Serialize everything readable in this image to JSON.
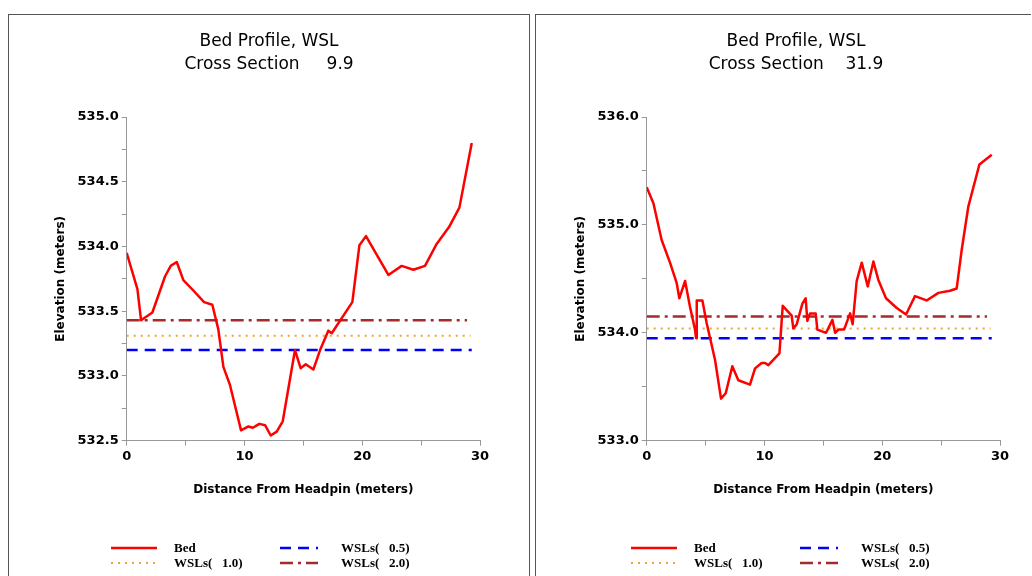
{
  "chart_data": [
    {
      "type": "line",
      "title": "Bed Profile, WSL",
      "subtitle": "Cross Section     9.9",
      "xlabel": "Distance From Headpin (meters)",
      "ylabel": "Elevation (meters)",
      "legend": "bottom",
      "marker": "none",
      "xlim": [
        0,
        30
      ],
      "xticks": [
        0,
        {
          "value": 5,
          "label": null
        },
        10,
        {
          "value": 15,
          "label": null
        },
        20,
        {
          "value": 25,
          "label": null
        },
        30
      ],
      "ylim": [
        532.5,
        535
      ],
      "yticks": [
        532.5,
        {
          "value": 532.75,
          "label": null
        },
        {
          "value": 533,
          "label": "533.0"
        },
        {
          "value": 533.25,
          "label": null
        },
        533.5,
        {
          "value": 533.75,
          "label": null
        },
        {
          "value": 534,
          "label": "534.0"
        },
        {
          "value": 534.25,
          "label": null
        },
        534.5,
        {
          "value": 534.75,
          "label": null
        },
        {
          "value": 535,
          "label": "535.0"
        }
      ],
      "series": [
        {
          "name": "Bed",
          "color": "#ff0000",
          "line_style": "solid",
          "x": [
            0,
            0.91,
            1.22,
            2.18,
            3.26,
            3.74,
            4.25,
            4.81,
            5.66,
            6.57,
            7.27,
            7.78,
            8.21,
            8.77,
            9.71,
            10.33,
            10.7,
            11.27,
            11.75,
            12.23,
            12.74,
            13.25,
            14.29,
            14.77,
            15.2,
            15.85,
            16.42,
            17.12,
            17.41,
            19.16,
            19.76,
            20.32,
            22.22,
            23.35,
            24.34,
            25.33,
            26.32,
            27.37,
            28.25,
            29.3
          ],
          "values": [
            533.95,
            533.67,
            533.43,
            533.49,
            533.77,
            533.85,
            533.88,
            533.74,
            533.66,
            533.57,
            533.55,
            533.36,
            533.07,
            532.93,
            532.58,
            532.61,
            532.6,
            532.63,
            532.62,
            532.54,
            532.57,
            532.65,
            533.2,
            533.06,
            533.09,
            533.05,
            533.2,
            533.35,
            533.33,
            533.57,
            534.01,
            534.08,
            533.78,
            533.85,
            533.82,
            533.85,
            534.02,
            534.15,
            534.3,
            534.8
          ]
        },
        {
          "name": "WSLs(   0.5)",
          "color": "#0000ff",
          "line_style": "dashed",
          "x": [
            0,
            29.3
          ],
          "values": [
            533.2,
            533.2
          ]
        },
        {
          "name": "WSLs(   1.0)",
          "color": "#eea530",
          "line_style": "dotted",
          "x": [
            0,
            29.2
          ],
          "values": [
            533.31,
            533.31
          ]
        },
        {
          "name": "WSLs(   2.0)",
          "color": "#a52a2a",
          "line_style": "dashdot",
          "x": [
            0,
            28.9
          ],
          "values": [
            533.43,
            533.43
          ]
        }
      ]
    },
    {
      "type": "line",
      "title": "Bed Profile, WSL",
      "subtitle": "Cross Section    31.9",
      "xlabel": "Distance From Headpin (meters)",
      "ylabel": "Elevation (meters)",
      "legend": "bottom",
      "marker": "none",
      "xlim": [
        0,
        30
      ],
      "xticks": [
        0,
        {
          "value": 5,
          "label": null
        },
        10,
        {
          "value": 15,
          "label": null
        },
        20,
        {
          "value": 25,
          "label": null
        },
        30
      ],
      "ylim": [
        533,
        536
      ],
      "yticks": [
        {
          "value": 533,
          "label": "533.0"
        },
        {
          "value": 533.5,
          "label": null
        },
        {
          "value": 534,
          "label": "534.0"
        },
        {
          "value": 534.5,
          "label": null
        },
        {
          "value": 535,
          "label": "535.0"
        },
        {
          "value": 535.5,
          "label": null
        },
        {
          "value": 536,
          "label": "536.0"
        }
      ],
      "series": [
        {
          "name": "Bed",
          "color": "#ff0000",
          "line_style": "solid",
          "x": [
            0,
            0.57,
            1.27,
            1.98,
            2.55,
            2.77,
            3.26,
            3.68,
            4.1,
            4.19,
            4.25,
            4.73,
            5.09,
            5.8,
            6.31,
            6.71,
            7.27,
            7.78,
            8.77,
            9.2,
            9.76,
            10.05,
            10.33,
            11.27,
            11.55,
            12.31,
            12.45,
            12.74,
            13.22,
            13.5,
            13.64,
            13.87,
            14.35,
            14.49,
            15.23,
            15.77,
            16,
            16.28,
            16.76,
            17.27,
            17.49,
            17.83,
            18.26,
            18.77,
            19.25,
            19.67,
            20.32,
            21.23,
            22.02,
            22.78,
            23.77,
            24.77,
            25.76,
            26.32,
            26.75,
            27.31,
            28.25,
            29.3
          ],
          "values": [
            535.35,
            535.2,
            534.86,
            534.65,
            534.46,
            534.32,
            534.48,
            534.24,
            534.03,
            533.95,
            534.3,
            534.3,
            534.09,
            533.75,
            533.39,
            533.44,
            533.69,
            533.56,
            533.52,
            533.67,
            533.72,
            533.72,
            533.7,
            533.81,
            534.25,
            534.16,
            534.04,
            534.08,
            534.27,
            534.32,
            534.11,
            534.18,
            534.18,
            534.03,
            534,
            534.12,
            534,
            534.03,
            534.03,
            534.18,
            534.08,
            534.48,
            534.65,
            534.43,
            534.66,
            534.49,
            534.32,
            534.23,
            534.17,
            534.34,
            534.3,
            534.37,
            534.39,
            534.41,
            534.77,
            535.17,
            535.56,
            535.65
          ]
        },
        {
          "name": "WSLs(   0.5)",
          "color": "#0000ff",
          "line_style": "dashed",
          "x": [
            0,
            29.3
          ],
          "values": [
            533.95,
            533.95
          ]
        },
        {
          "name": "WSLs(   1.0)",
          "color": "#eea530",
          "line_style": "dotted",
          "x": [
            0,
            29.2
          ],
          "values": [
            534.04,
            534.04
          ]
        },
        {
          "name": "WSLs(   2.0)",
          "color": "#a52a2a",
          "line_style": "dashdot",
          "x": [
            0,
            28.9
          ],
          "values": [
            534.15,
            534.15
          ]
        }
      ]
    }
  ]
}
